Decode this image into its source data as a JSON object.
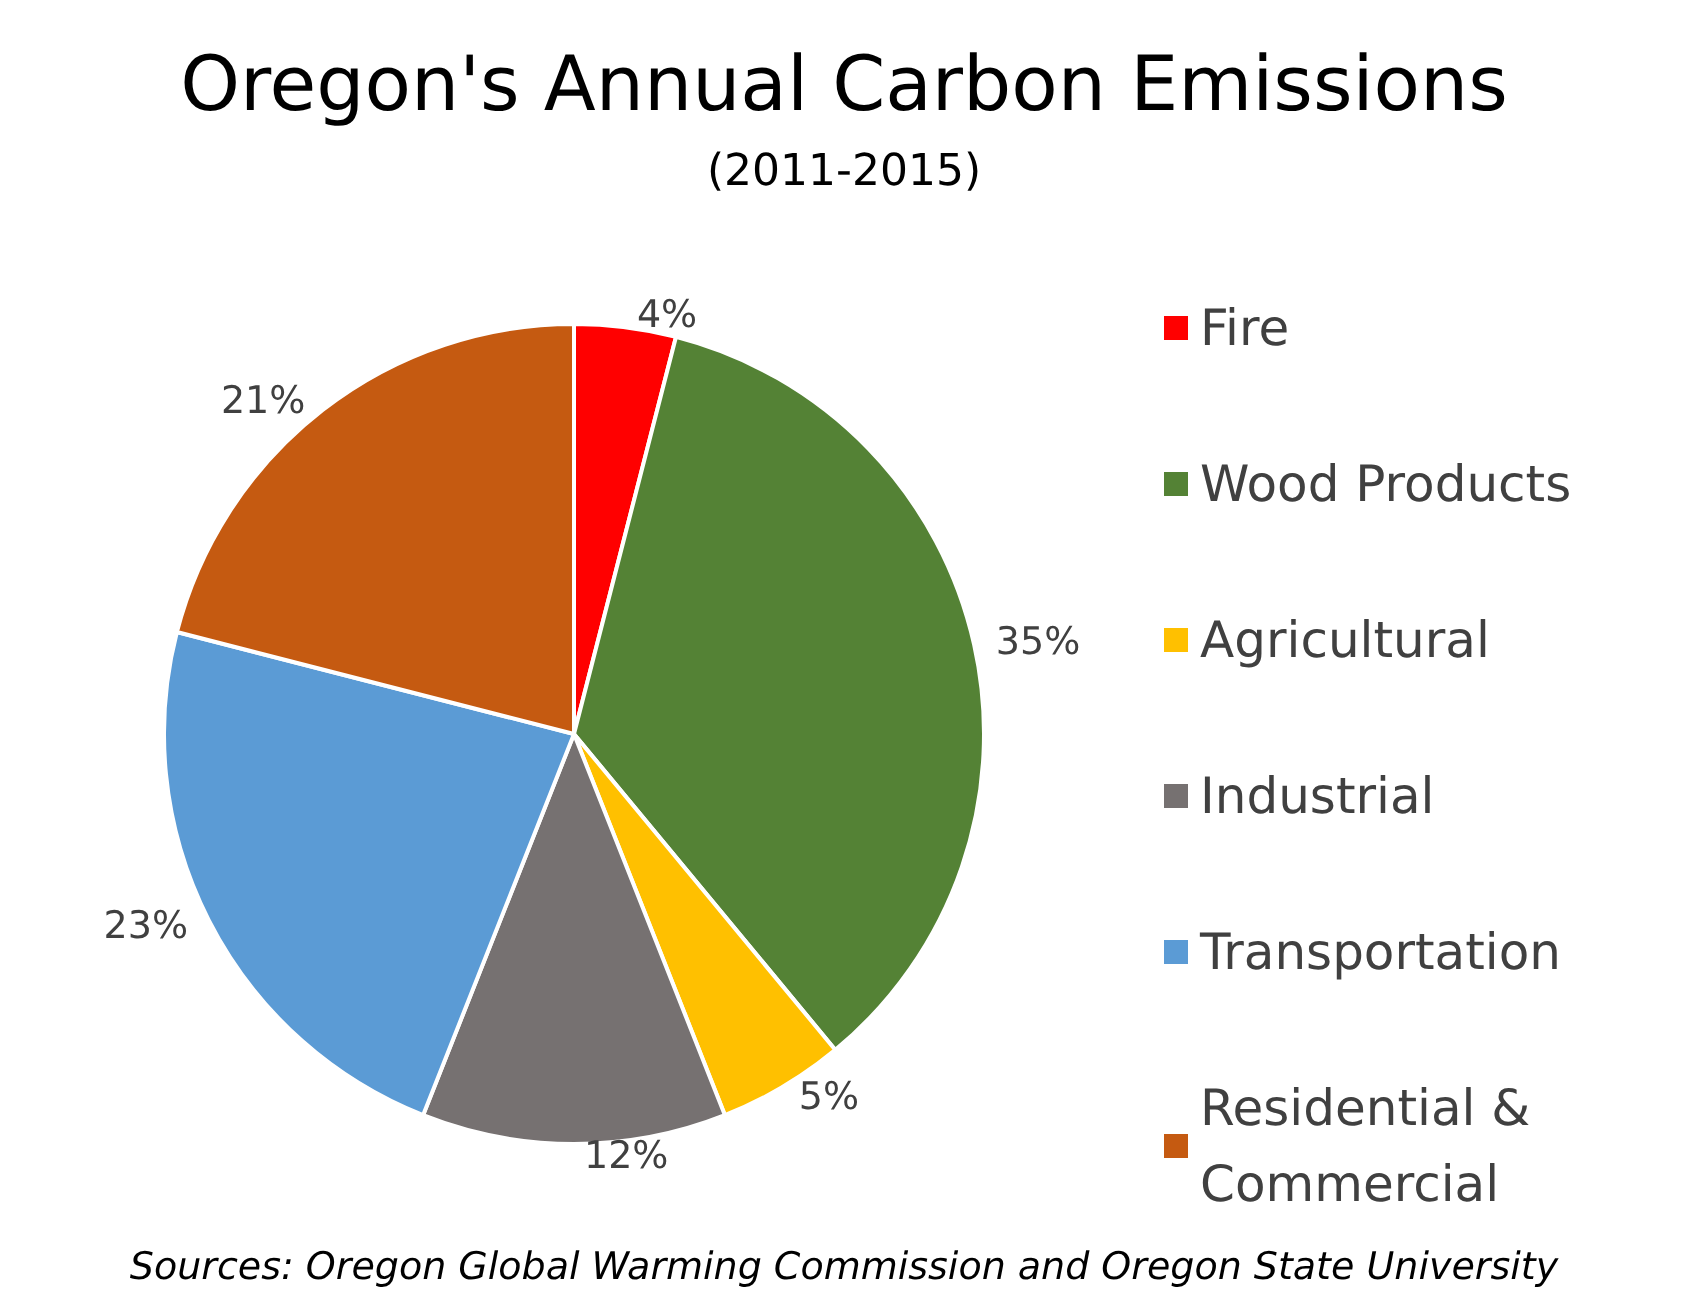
{
  "chart_data": {
    "type": "pie",
    "title": "Oregon's Annual Carbon Emissions",
    "subtitle": "(2011-2015)",
    "categories": [
      "Fire",
      "Wood Products",
      "Agricultural",
      "Industrial",
      "Transportation",
      "Residential & Commercial"
    ],
    "values": [
      4,
      35,
      5,
      12,
      23,
      21
    ],
    "colors": [
      "#ff0000",
      "#548235",
      "#ffc000",
      "#767171",
      "#5b9bd5",
      "#c55a11"
    ],
    "value_labels": [
      "4%",
      "35%",
      "5%",
      "12%",
      "23%",
      "21%"
    ],
    "legend": "right",
    "annotations": [
      "Sources: Oregon Global Warming Commission and Oregon State University"
    ]
  }
}
